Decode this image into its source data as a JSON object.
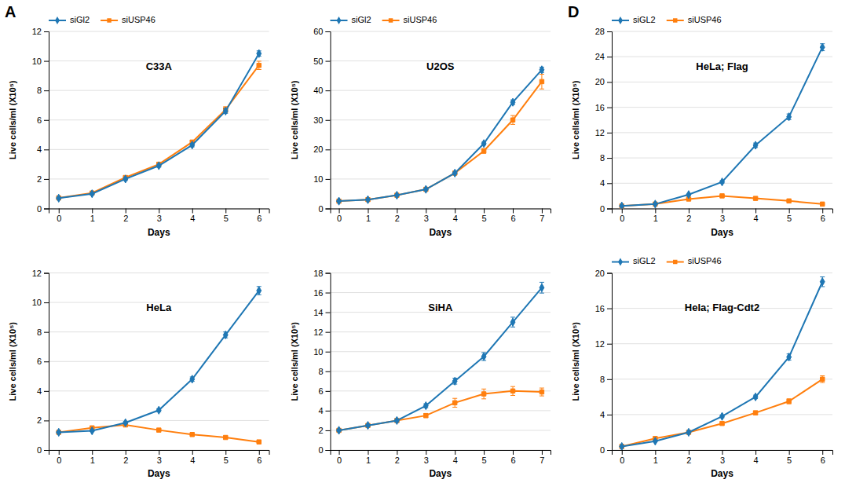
{
  "chart_data": [
    {
      "type": "line",
      "title": "C33A",
      "xlabel": "Days",
      "ylabel": "Live cells/ml (X10⁵)",
      "annotations": [
        "A"
      ],
      "xlim": [
        -0.3,
        6.3
      ],
      "ylim": [
        0,
        12
      ],
      "xticks": [
        0,
        1,
        2,
        3,
        4,
        5,
        6
      ],
      "yticks": [
        0,
        2,
        4,
        6,
        8,
        10,
        12
      ],
      "grid": true,
      "legend": "upper left",
      "x": [
        0,
        1,
        2,
        3,
        4,
        5,
        6
      ],
      "series": [
        {
          "name": "siGl2",
          "marker": "diamond",
          "values": [
            0.7,
            1.0,
            2.0,
            2.9,
            4.3,
            6.6,
            10.5
          ],
          "error": [
            0.05,
            0.06,
            0.1,
            0.1,
            0.12,
            0.15,
            0.18
          ]
        },
        {
          "name": "siUSP46",
          "marker": "square",
          "values": [
            0.72,
            1.05,
            2.1,
            3.0,
            4.5,
            6.7,
            9.7
          ],
          "error": [
            0.05,
            0.06,
            0.1,
            0.1,
            0.12,
            0.2,
            0.28
          ]
        }
      ]
    },
    {
      "type": "line",
      "title": "U2OS",
      "xlabel": "Days",
      "ylabel": "Live cells/ml (X10⁵)",
      "xlim": [
        -0.3,
        7.3
      ],
      "ylim": [
        0,
        60
      ],
      "xticks": [
        0,
        1,
        2,
        3,
        4,
        5,
        6,
        7
      ],
      "yticks": [
        0,
        10,
        20,
        30,
        40,
        50,
        60
      ],
      "grid": true,
      "legend": "upper left",
      "x": [
        0,
        1,
        2,
        3,
        4,
        5,
        6,
        7
      ],
      "series": [
        {
          "name": "siGl2",
          "marker": "diamond",
          "values": [
            2.5,
            3.0,
            4.5,
            6.5,
            12.0,
            22.0,
            36.0,
            47.0
          ],
          "error": [
            0.1,
            0.1,
            0.15,
            0.2,
            0.3,
            0.5,
            0.8,
            0.9
          ]
        },
        {
          "name": "siUSP46",
          "marker": "square",
          "values": [
            2.5,
            3.0,
            4.5,
            6.5,
            12.0,
            19.5,
            30.0,
            43.0
          ],
          "error": [
            0.1,
            0.1,
            0.15,
            0.2,
            0.5,
            0.8,
            1.5,
            2.5
          ]
        }
      ]
    },
    {
      "type": "line",
      "title": "HeLa",
      "xlabel": "Days",
      "ylabel": "Live cells/ml (X10⁵)",
      "xlim": [
        -0.3,
        6.3
      ],
      "ylim": [
        0,
        12
      ],
      "xticks": [
        0,
        1,
        2,
        3,
        4,
        5,
        6
      ],
      "yticks": [
        0,
        2,
        4,
        6,
        8,
        10,
        12
      ],
      "grid": true,
      "x": [
        0,
        1,
        2,
        3,
        4,
        5,
        6
      ],
      "series": [
        {
          "marker": "diamond",
          "values": [
            1.2,
            1.3,
            1.85,
            2.7,
            4.8,
            7.8,
            10.8
          ],
          "error": [
            0.05,
            0.05,
            0.08,
            0.1,
            0.15,
            0.2,
            0.28
          ]
        },
        {
          "marker": "square",
          "values": [
            1.2,
            1.5,
            1.7,
            1.35,
            1.05,
            0.85,
            0.55
          ],
          "error": [
            0.05,
            0.05,
            0.07,
            0.07,
            0.06,
            0.05,
            0.04
          ]
        }
      ]
    },
    {
      "type": "line",
      "title": "SiHA",
      "xlabel": "Days",
      "ylabel": "Live cells/ml (X10⁵)",
      "xlim": [
        -0.3,
        7.3
      ],
      "ylim": [
        0,
        18
      ],
      "xticks": [
        0,
        1,
        2,
        3,
        4,
        5,
        6,
        7
      ],
      "yticks": [
        0,
        2,
        4,
        6,
        8,
        10,
        12,
        14,
        16,
        18
      ],
      "grid": true,
      "x": [
        0,
        1,
        2,
        3,
        4,
        5,
        6,
        7
      ],
      "series": [
        {
          "marker": "diamond",
          "values": [
            2.0,
            2.5,
            3.0,
            4.5,
            7.0,
            9.5,
            13.0,
            16.5
          ],
          "error": [
            0.1,
            0.1,
            0.15,
            0.2,
            0.3,
            0.4,
            0.5,
            0.55
          ]
        },
        {
          "marker": "square",
          "values": [
            2.0,
            2.5,
            3.0,
            3.5,
            4.8,
            5.7,
            6.0,
            5.9
          ],
          "error": [
            0.1,
            0.1,
            0.15,
            0.2,
            0.45,
            0.5,
            0.45,
            0.4
          ]
        }
      ]
    },
    {
      "type": "line",
      "title": "HeLa; Flag",
      "xlabel": "Days",
      "ylabel": "Live cells/ml (X10⁵)",
      "annotations": [
        "D"
      ],
      "xlim": [
        -0.3,
        6.3
      ],
      "ylim": [
        0,
        28
      ],
      "xticks": [
        0,
        1,
        2,
        3,
        4,
        5,
        6
      ],
      "yticks": [
        0,
        4,
        8,
        12,
        16,
        20,
        24,
        28
      ],
      "grid": true,
      "legend": "upper left",
      "x": [
        0,
        1,
        2,
        3,
        4,
        5,
        6
      ],
      "series": [
        {
          "name": "siGL2",
          "marker": "diamond",
          "values": [
            0.4,
            0.7,
            2.2,
            4.2,
            10.0,
            14.5,
            25.5
          ],
          "error": [
            0.04,
            0.05,
            0.1,
            0.18,
            0.35,
            0.45,
            0.55
          ]
        },
        {
          "name": "siUSP46",
          "marker": "square",
          "values": [
            0.4,
            0.7,
            1.5,
            2.0,
            1.6,
            1.2,
            0.7
          ],
          "error": [
            0.04,
            0.05,
            0.08,
            0.1,
            0.08,
            0.06,
            0.04
          ]
        }
      ]
    },
    {
      "type": "line",
      "title": "Hela; Flag-Cdt2",
      "xlabel": "Days",
      "ylabel": "Live cells/ml (X10⁵)",
      "xlim": [
        -0.3,
        6.3
      ],
      "ylim": [
        0,
        20
      ],
      "xticks": [
        0,
        1,
        2,
        3,
        4,
        5,
        6
      ],
      "yticks": [
        0,
        4,
        8,
        12,
        16,
        20
      ],
      "grid": true,
      "legend": "upper left",
      "x": [
        0,
        1,
        2,
        3,
        4,
        5,
        6
      ],
      "series": [
        {
          "name": "siGL2",
          "marker": "diamond",
          "values": [
            0.4,
            1.0,
            2.0,
            3.8,
            6.0,
            10.5,
            19.0
          ],
          "error": [
            0.04,
            0.05,
            0.1,
            0.15,
            0.2,
            0.35,
            0.55
          ]
        },
        {
          "name": "siUSP46",
          "marker": "square",
          "values": [
            0.4,
            1.3,
            2.0,
            3.0,
            4.2,
            5.5,
            8.0
          ],
          "error": [
            0.04,
            0.07,
            0.1,
            0.14,
            0.2,
            0.28,
            0.38
          ]
        }
      ]
    }
  ]
}
